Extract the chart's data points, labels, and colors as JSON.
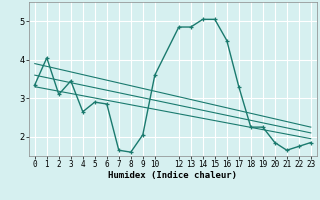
{
  "xlabel": "Humidex (Indice chaleur)",
  "bg_color": "#d6f0f0",
  "grid_color": "#ffffff",
  "line_color": "#1a7a6e",
  "xlim": [
    -0.5,
    23.5
  ],
  "ylim": [
    1.5,
    5.5
  ],
  "yticks": [
    2,
    3,
    4,
    5
  ],
  "xticks": [
    0,
    1,
    2,
    3,
    4,
    5,
    6,
    7,
    8,
    9,
    10,
    12,
    13,
    14,
    15,
    16,
    17,
    18,
    19,
    20,
    21,
    22,
    23
  ],
  "xtick_labels": [
    "0",
    "1",
    "2",
    "3",
    "4",
    "5",
    "6",
    "7",
    "8",
    "9",
    "10",
    "12",
    "13",
    "14",
    "15",
    "16",
    "17",
    "18",
    "19",
    "20",
    "21",
    "22",
    "23"
  ],
  "line1_x": [
    0,
    1,
    2,
    3,
    4,
    5,
    6,
    7,
    8,
    9,
    10,
    12,
    13,
    14,
    15,
    16,
    17,
    18,
    19,
    20,
    21,
    22,
    23
  ],
  "line1_y": [
    3.35,
    4.05,
    3.1,
    3.45,
    2.65,
    2.9,
    2.85,
    1.65,
    1.6,
    2.05,
    3.6,
    4.85,
    4.85,
    5.05,
    5.05,
    4.5,
    3.3,
    2.25,
    2.25,
    1.85,
    1.65,
    1.75,
    1.85
  ],
  "line2_x": [
    0,
    23
  ],
  "line2_y": [
    3.9,
    2.25
  ],
  "line3_x": [
    0,
    23
  ],
  "line3_y": [
    3.6,
    2.1
  ],
  "line4_x": [
    0,
    23
  ],
  "line4_y": [
    3.3,
    1.95
  ]
}
